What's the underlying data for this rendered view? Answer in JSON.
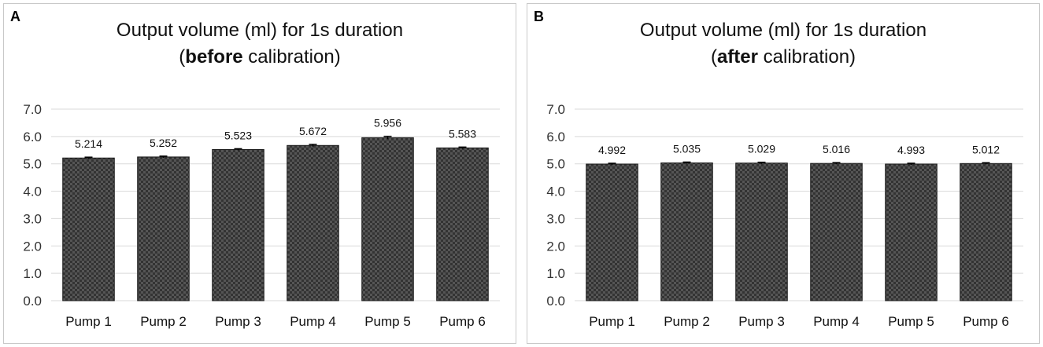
{
  "colors": {
    "bar_fill": "#333333",
    "bar_check": "#555555",
    "grid": "#d9d9d9",
    "error_bar": "#000000"
  },
  "chart_data": [
    {
      "type": "bar",
      "panel_label": "A",
      "title_line1": "Output volume (ml) for 1s duration",
      "title_line2_open": "(",
      "title_line2_bold": "before",
      "title_line2_rest": " calibration)",
      "xlabel": "",
      "ylabel": "",
      "ylim": [
        0,
        7
      ],
      "yticks": [
        "0.0",
        "1.0",
        "2.0",
        "3.0",
        "4.0",
        "5.0",
        "6.0",
        "7.0"
      ],
      "categories": [
        "Pump 1",
        "Pump 2",
        "Pump 3",
        "Pump 4",
        "Pump 5",
        "Pump 6"
      ],
      "values": [
        5.214,
        5.252,
        5.523,
        5.672,
        5.956,
        5.583
      ],
      "value_labels": [
        "5.214",
        "5.252",
        "5.523",
        "5.672",
        "5.956",
        "5.583"
      ],
      "errors": [
        0.03,
        0.03,
        0.03,
        0.04,
        0.05,
        0.03
      ],
      "grid": true,
      "legend": "none"
    },
    {
      "type": "bar",
      "panel_label": "B",
      "title_line1": "Output volume (ml) for 1s duration",
      "title_line2_open": "(",
      "title_line2_bold": "after",
      "title_line2_rest": " calibration)",
      "xlabel": "",
      "ylabel": "",
      "ylim": [
        0,
        7
      ],
      "yticks": [
        "0.0",
        "1.0",
        "2.0",
        "3.0",
        "4.0",
        "5.0",
        "6.0",
        "7.0"
      ],
      "categories": [
        "Pump 1",
        "Pump 2",
        "Pump 3",
        "Pump 4",
        "Pump 5",
        "Pump 6"
      ],
      "values": [
        4.992,
        5.035,
        5.029,
        5.016,
        4.993,
        5.012
      ],
      "value_labels": [
        "4.992",
        "5.035",
        "5.029",
        "5.016",
        "4.993",
        "5.012"
      ],
      "errors": [
        0.03,
        0.03,
        0.03,
        0.03,
        0.03,
        0.03
      ],
      "grid": true,
      "legend": "none"
    }
  ]
}
